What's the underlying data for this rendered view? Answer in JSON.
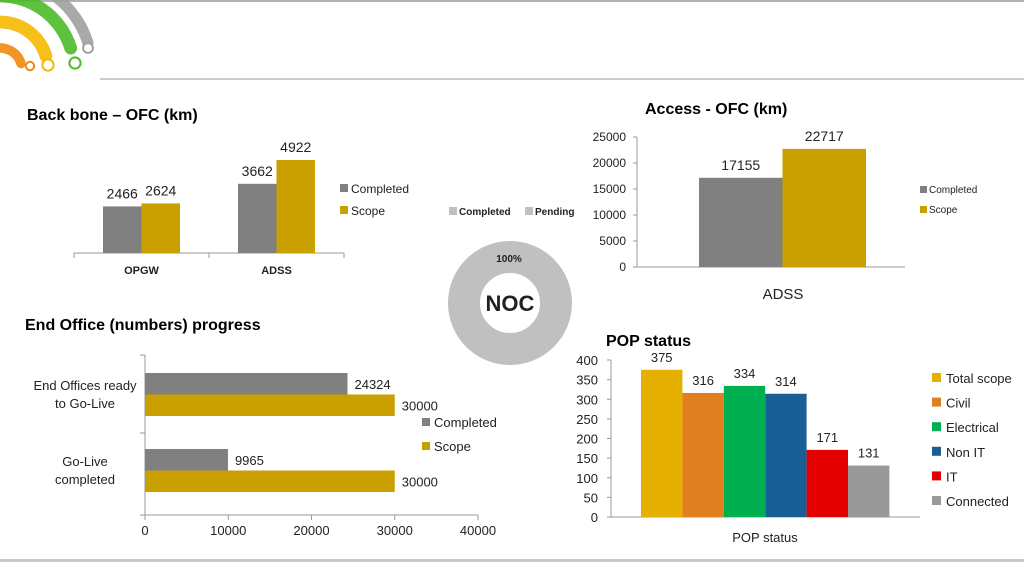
{
  "colors": {
    "completed": "#808080",
    "scope": "#c9a000",
    "donut": "#c0c0c0"
  },
  "logo": {
    "arc_colors": [
      "#f08a10",
      "#f5b800",
      "#4cbb2a",
      "#a0a0a0"
    ]
  },
  "chart_data": [
    {
      "id": "backbone",
      "type": "bar",
      "title": "Back bone – OFC (km)",
      "categories": [
        "OPGW",
        "ADSS"
      ],
      "series": [
        {
          "name": "Completed",
          "values": [
            2466,
            3662
          ]
        },
        {
          "name": "Scope",
          "values": [
            2624,
            4922
          ]
        }
      ],
      "legend": "right",
      "grid": false
    },
    {
      "id": "access",
      "type": "bar",
      "title": "Access - OFC (km)",
      "categories": [
        "ADSS"
      ],
      "series": [
        {
          "name": "Completed",
          "values": [
            17155
          ]
        },
        {
          "name": "Scope",
          "values": [
            22717
          ]
        }
      ],
      "ylim": [
        0,
        25000
      ],
      "yticks": [
        "0",
        "5000",
        "10000",
        "15000",
        "20000",
        "25000"
      ],
      "legend": "right",
      "grid": false
    },
    {
      "id": "noc",
      "type": "pie",
      "center_label": "NOC",
      "slices": [
        {
          "name": "Completed",
          "value": 100,
          "label": "100%"
        },
        {
          "name": "Pending",
          "value": 0
        }
      ],
      "legend": "top"
    },
    {
      "id": "endoffice",
      "type": "bar",
      "orientation": "horizontal",
      "title": "End Office (numbers) progress",
      "categories": [
        [
          "End Offices ready",
          "to Go-Live"
        ],
        [
          "Go-Live",
          "completed"
        ]
      ],
      "series": [
        {
          "name": "Completed",
          "values": [
            24324,
            9965
          ]
        },
        {
          "name": "Scope",
          "values": [
            30000,
            30000
          ]
        }
      ],
      "xlim": [
        0,
        40000
      ],
      "xticks": [
        "0",
        "10000",
        "20000",
        "30000",
        "40000"
      ],
      "legend": "right",
      "grid": false
    },
    {
      "id": "pop",
      "type": "bar",
      "title": "POP status",
      "xlabel": "POP status",
      "series": [
        {
          "name": "Total scope",
          "value": 375,
          "color": "#e6b000"
        },
        {
          "name": "Civil",
          "value": 316,
          "color": "#e07f1f"
        },
        {
          "name": "Electrical",
          "value": 334,
          "color": "#00b050"
        },
        {
          "name": "Non IT",
          "value": 314,
          "color": "#1a5e96"
        },
        {
          "name": "IT",
          "value": 171,
          "color": "#e50000"
        },
        {
          "name": "Connected",
          "value": 131,
          "color": "#999999"
        }
      ],
      "ylim": [
        0,
        400
      ],
      "yticks": [
        "0",
        "50",
        "100",
        "150",
        "200",
        "250",
        "300",
        "350",
        "400"
      ],
      "legend": "right",
      "grid": false
    }
  ]
}
